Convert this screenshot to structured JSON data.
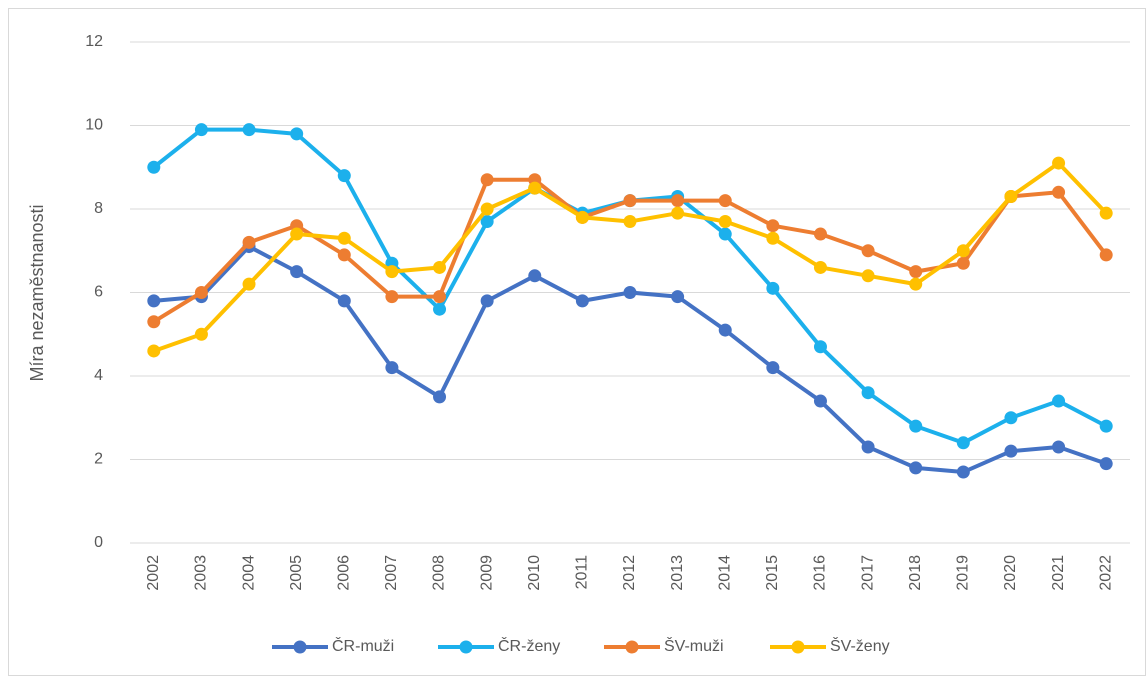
{
  "chart_data": {
    "type": "line",
    "y_label": "Míra nezaměstnanosti",
    "categories": [
      "2002",
      "2003",
      "2004",
      "2005",
      "2006",
      "2007",
      "2008",
      "2009",
      "2010",
      "2011",
      "2012",
      "2013",
      "2014",
      "2015",
      "2016",
      "2017",
      "2018",
      "2019",
      "2020",
      "2021",
      "2022"
    ],
    "series": [
      {
        "name": "ČR-muži",
        "color": "#4472c4",
        "values": [
          5.8,
          5.9,
          7.1,
          6.5,
          5.8,
          4.2,
          3.5,
          5.8,
          6.4,
          5.8,
          6.0,
          5.9,
          5.1,
          4.2,
          3.4,
          2.3,
          1.8,
          1.7,
          2.2,
          2.3,
          1.9
        ]
      },
      {
        "name": "ČR-ženy",
        "color": "#1cb0ec",
        "values": [
          9.0,
          9.9,
          9.9,
          9.8,
          8.8,
          6.7,
          5.6,
          7.7,
          8.5,
          7.9,
          8.2,
          8.3,
          7.4,
          6.1,
          4.7,
          3.6,
          2.8,
          2.4,
          3.0,
          3.4,
          2.8
        ]
      },
      {
        "name": "ŠV-muži",
        "color": "#ed7d31",
        "values": [
          5.3,
          6.0,
          7.2,
          7.6,
          6.9,
          5.9,
          5.9,
          8.7,
          8.7,
          7.8,
          8.2,
          8.2,
          8.2,
          7.6,
          7.4,
          7.0,
          6.5,
          6.7,
          8.3,
          8.4,
          6.9
        ]
      },
      {
        "name": "ŠV-ženy",
        "color": "#ffc000",
        "values": [
          4.6,
          5.0,
          6.2,
          7.4,
          7.3,
          6.5,
          6.6,
          8.0,
          8.5,
          7.8,
          7.7,
          7.9,
          7.7,
          7.3,
          6.6,
          6.4,
          6.2,
          7.0,
          8.3,
          9.1,
          7.9
        ]
      }
    ],
    "ylim": [
      0,
      12
    ],
    "yticks": [
      0,
      2,
      4,
      6,
      8,
      10,
      12
    ],
    "grid": true,
    "legend": "bottom"
  }
}
